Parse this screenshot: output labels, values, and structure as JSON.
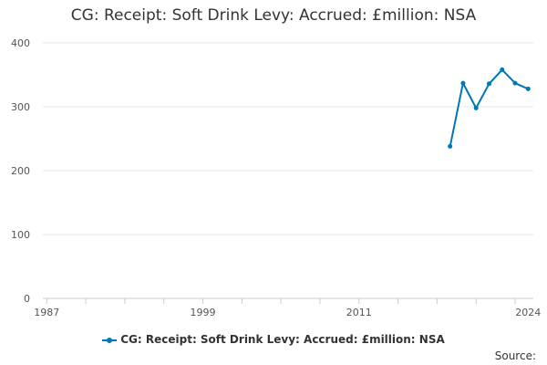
{
  "chart_data": {
    "type": "line",
    "title": "CG: Receipt: Soft Drink Levy: Accrued: £million: NSA",
    "xlabel": "",
    "ylabel": "",
    "xlim": [
      1986.7,
      2024.4
    ],
    "ylim": [
      0,
      400
    ],
    "yticks": [
      "0",
      "100",
      "200",
      "300",
      "400"
    ],
    "xticks": [
      "1987",
      "1999",
      "2011",
      "2024"
    ],
    "grid": true,
    "legend_position": "bottom",
    "series": [
      {
        "name": "CG: Receipt: Soft Drink Levy: Accrued: £million: NSA",
        "color": "#0077b6",
        "x": [
          2018,
          2019,
          2020,
          2021,
          2022,
          2023,
          2024
        ],
        "y": [
          238,
          337,
          298,
          336,
          358,
          337,
          328
        ]
      }
    ]
  },
  "source_label": "Source:"
}
